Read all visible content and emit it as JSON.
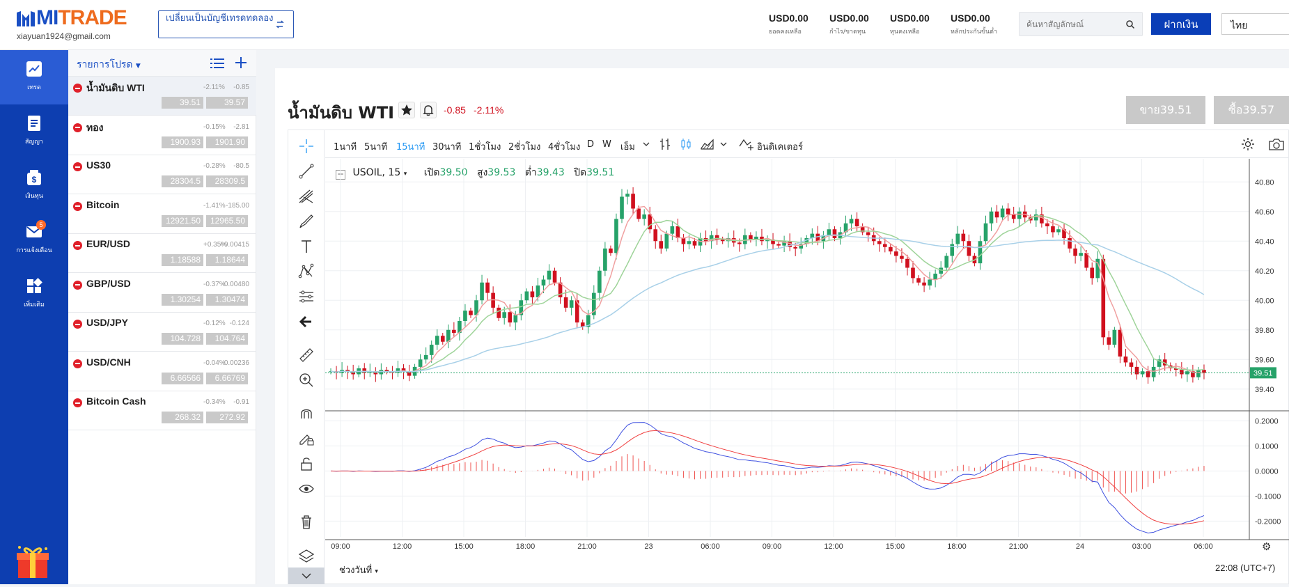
{
  "brand": {
    "mi": "MI",
    "trade": "TRADE"
  },
  "user": {
    "email": "xiayuan1924@gmail.com"
  },
  "switch_account": {
    "label": "เปลี่ยนเป็นบัญชีเทรดทดลอง"
  },
  "account": [
    {
      "value": "USD0.00",
      "label": "ยอดคงเหลือ"
    },
    {
      "value": "USD0.00",
      "label": "กำไร/ขาดทุน"
    },
    {
      "value": "USD0.00",
      "label": "ทุนคงเหลือ"
    },
    {
      "value": "USD0.00",
      "label": "หลักประกันขั้นต่ำ"
    }
  ],
  "search": {
    "placeholder": "ค้นหาสัญลักษณ์"
  },
  "deposit": {
    "label": "ฝากเงิน"
  },
  "language": {
    "value": "ไทย"
  },
  "nav": [
    {
      "label": "เทรด",
      "icon": "chart-icon"
    },
    {
      "label": "สัญญา",
      "icon": "document-icon"
    },
    {
      "label": "เงินทุน",
      "icon": "wallet-icon"
    },
    {
      "label": "การแจ้งเตือน",
      "icon": "mail-icon",
      "badge": "5"
    },
    {
      "label": "เพิ่มเติม",
      "icon": "grid-icon"
    }
  ],
  "watchlist": {
    "title": "รายการโปรด",
    "items": [
      {
        "name": "น้ำมันดิบ WTI",
        "pct": "-2.11%",
        "chg": "-0.85",
        "sell": "39.51",
        "buy": "39.57"
      },
      {
        "name": "ทอง",
        "pct": "-0.15%",
        "chg": "-2.81",
        "sell": "1900.93",
        "buy": "1901.90"
      },
      {
        "name": "US30",
        "pct": "-0.28%",
        "chg": "-80.5",
        "sell": "28304.5",
        "buy": "28309.5"
      },
      {
        "name": "Bitcoin",
        "pct": "-1.41%",
        "chg": "-185.00",
        "sell": "12921.50",
        "buy": "12965.50"
      },
      {
        "name": "EUR/USD",
        "pct": "+0.35%",
        "chg": "+0.00415",
        "sell": "1.18588",
        "buy": "1.18644"
      },
      {
        "name": "GBP/USD",
        "pct": "-0.37%",
        "chg": "-0.00480",
        "sell": "1.30254",
        "buy": "1.30474"
      },
      {
        "name": "USD/JPY",
        "pct": "-0.12%",
        "chg": "-0.124",
        "sell": "104.728",
        "buy": "104.764"
      },
      {
        "name": "USD/CNH",
        "pct": "-0.04%",
        "chg": "-0.00236",
        "sell": "6.66566",
        "buy": "6.66769"
      },
      {
        "name": "Bitcoin Cash",
        "pct": "-0.34%",
        "chg": "-0.91",
        "sell": "268.32",
        "buy": "272.92"
      }
    ]
  },
  "instrument": {
    "title": "น้ำมันดิบ WTI",
    "change": "-0.85",
    "change_pct": "-2.11%",
    "sell_label": "ขาย39.51",
    "buy_label": "ซื้อ39.57"
  },
  "timeframes": [
    {
      "label": "1นาที",
      "active": false
    },
    {
      "label": "5นาที",
      "active": false
    },
    {
      "label": "15นาที",
      "active": true
    },
    {
      "label": "30นาที",
      "active": false
    },
    {
      "label": "1ชั่วโมง",
      "active": false
    },
    {
      "label": "2ชั่วโมง",
      "active": false
    },
    {
      "label": "4ชั่วโมง",
      "active": false
    },
    {
      "label": "D",
      "active": false
    },
    {
      "label": "W",
      "active": false
    },
    {
      "label": "เอ็ม",
      "active": false
    }
  ],
  "indicators_label": "อินดิเคเตอร์",
  "ohlc": {
    "symbol": "USOIL, 15",
    "open_label": "เปิด",
    "open": "39.50",
    "high_label": "สูง",
    "high": "39.53",
    "low_label": "ต่ำ",
    "low": "39.43",
    "close_label": "ปิด",
    "close": "39.51"
  },
  "chart_data": {
    "type": "candlestick",
    "x_ticks": [
      "09:00",
      "12:00",
      "15:00",
      "18:00",
      "21:00",
      "23",
      "06:00",
      "09:00",
      "12:00",
      "15:00",
      "18:00",
      "21:00",
      "24",
      "03:00",
      "06:00"
    ],
    "price_ticks": [
      40.8,
      40.6,
      40.4,
      40.2,
      40.0,
      39.8,
      39.6,
      39.4
    ],
    "price_ylim": [
      39.3,
      40.9
    ],
    "current_price": "39.51",
    "macd_ticks": [
      "0.2000",
      "0.1000",
      "0.0000",
      "-0.1000",
      "-0.2000"
    ],
    "macd_ylim": [
      -0.26,
      0.24
    ],
    "close_series": [
      39.52,
      39.51,
      39.53,
      39.52,
      39.5,
      39.54,
      39.51,
      39.52,
      39.5,
      39.53,
      39.52,
      39.51,
      39.54,
      39.52,
      39.49,
      39.55,
      39.6,
      39.63,
      39.7,
      39.76,
      39.72,
      39.8,
      39.78,
      39.86,
      39.93,
      39.9,
      40.0,
      40.12,
      40.05,
      39.95,
      39.88,
      39.92,
      39.85,
      39.9,
      40.0,
      40.06,
      40.02,
      40.1,
      40.14,
      40.2,
      40.12,
      40.02,
      39.95,
      40.0,
      39.85,
      39.82,
      39.9,
      40.05,
      40.2,
      40.35,
      40.32,
      40.55,
      40.7,
      40.72,
      40.62,
      40.55,
      40.58,
      40.48,
      40.4,
      40.35,
      40.45,
      40.5,
      40.42,
      40.38,
      40.4,
      40.37,
      40.42,
      40.4,
      40.44,
      40.41,
      40.4,
      40.42,
      40.39,
      40.38,
      40.44,
      40.41,
      40.43,
      40.4,
      40.41,
      40.38,
      40.37,
      40.4,
      40.36,
      40.35,
      40.38,
      40.42,
      40.45,
      40.4,
      40.44,
      40.48,
      40.42,
      40.46,
      40.52,
      40.55,
      40.5,
      40.46,
      40.44,
      40.4,
      40.38,
      40.36,
      40.33,
      40.3,
      40.28,
      40.22,
      40.15,
      40.12,
      40.1,
      40.14,
      40.18,
      40.22,
      40.3,
      40.38,
      40.45,
      40.4,
      40.3,
      40.25,
      40.4,
      40.52,
      40.6,
      40.56,
      40.62,
      40.58,
      40.55,
      40.6,
      40.56,
      40.54,
      40.58,
      40.52,
      40.5,
      40.46,
      40.48,
      40.42,
      40.35,
      40.3,
      40.32,
      40.22,
      40.15,
      40.28,
      39.75,
      39.7,
      39.8,
      39.62,
      39.58,
      39.55,
      39.5,
      39.52,
      39.48,
      39.55,
      39.6,
      39.56,
      39.54,
      39.53,
      39.5,
      39.52,
      39.48,
      39.53,
      39.51
    ]
  },
  "date_range_label": "ช่วงวันที่",
  "clock": "22:08 (UTC+7)",
  "colors": {
    "brand_blue": "#0d3eb0",
    "orange": "#ee6b1e",
    "up": "#26a269",
    "down": "#d0101e",
    "ma_fast": "#f0a0a0",
    "ma_mid": "#9fd49a",
    "ma_slow": "#a8d0e8"
  }
}
